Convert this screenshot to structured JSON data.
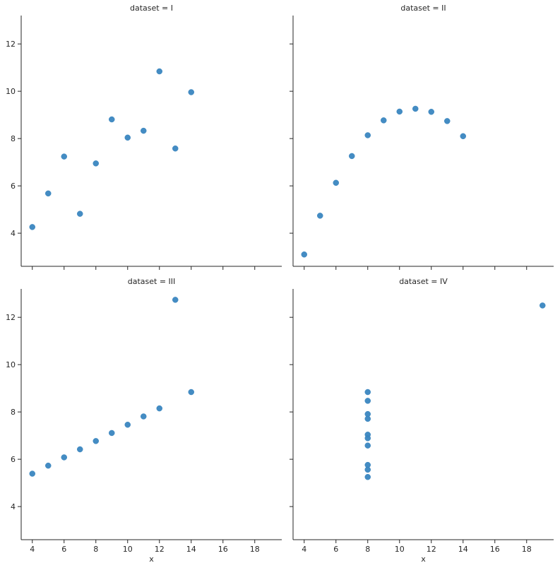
{
  "chart_data": [
    {
      "type": "scatter",
      "title": "dataset = I",
      "xlabel": "",
      "ylabel": "",
      "xlim": [
        3.3,
        19.7
      ],
      "ylim": [
        2.6,
        13.2
      ],
      "xticks": [
        4,
        6,
        8,
        10,
        12,
        14,
        16,
        18
      ],
      "yticks": [
        4,
        6,
        8,
        10,
        12
      ],
      "show_x_tick_labels": false,
      "show_y_tick_labels": true,
      "color": "#3a86c0",
      "x": [
        10,
        8,
        13,
        9,
        11,
        14,
        6,
        4,
        12,
        7,
        5
      ],
      "y": [
        8.04,
        6.95,
        7.58,
        8.81,
        8.33,
        9.96,
        7.24,
        4.26,
        10.84,
        4.82,
        5.68
      ]
    },
    {
      "type": "scatter",
      "title": "dataset = II",
      "xlabel": "",
      "ylabel": "",
      "xlim": [
        3.3,
        19.7
      ],
      "ylim": [
        2.6,
        13.2
      ],
      "xticks": [
        4,
        6,
        8,
        10,
        12,
        14,
        16,
        18
      ],
      "yticks": [
        4,
        6,
        8,
        10,
        12
      ],
      "show_x_tick_labels": false,
      "show_y_tick_labels": false,
      "color": "#3a86c0",
      "x": [
        10,
        8,
        13,
        9,
        11,
        14,
        6,
        4,
        12,
        7,
        5
      ],
      "y": [
        9.14,
        8.14,
        8.74,
        8.77,
        9.26,
        8.1,
        6.13,
        3.1,
        9.13,
        7.26,
        4.74
      ]
    },
    {
      "type": "scatter",
      "title": "dataset = III",
      "xlabel": "x",
      "ylabel": "",
      "xlim": [
        3.3,
        19.7
      ],
      "ylim": [
        2.6,
        13.2
      ],
      "xticks": [
        4,
        6,
        8,
        10,
        12,
        14,
        16,
        18
      ],
      "yticks": [
        4,
        6,
        8,
        10,
        12
      ],
      "show_x_tick_labels": true,
      "show_y_tick_labels": true,
      "color": "#3a86c0",
      "x": [
        10,
        8,
        13,
        9,
        11,
        14,
        6,
        4,
        12,
        7,
        5
      ],
      "y": [
        7.46,
        6.77,
        12.74,
        7.11,
        7.81,
        8.84,
        6.08,
        5.39,
        8.15,
        6.42,
        5.73
      ]
    },
    {
      "type": "scatter",
      "title": "dataset = IV",
      "xlabel": "x",
      "ylabel": "",
      "xlim": [
        3.3,
        19.7
      ],
      "ylim": [
        2.6,
        13.2
      ],
      "xticks": [
        4,
        6,
        8,
        10,
        12,
        14,
        16,
        18
      ],
      "yticks": [
        4,
        6,
        8,
        10,
        12
      ],
      "show_x_tick_labels": true,
      "show_y_tick_labels": false,
      "color": "#3a86c0",
      "x": [
        8,
        8,
        8,
        8,
        8,
        8,
        8,
        19,
        8,
        8,
        8
      ],
      "y": [
        6.58,
        5.76,
        7.71,
        8.84,
        8.47,
        7.04,
        5.25,
        12.5,
        5.56,
        7.91,
        6.89
      ]
    }
  ]
}
